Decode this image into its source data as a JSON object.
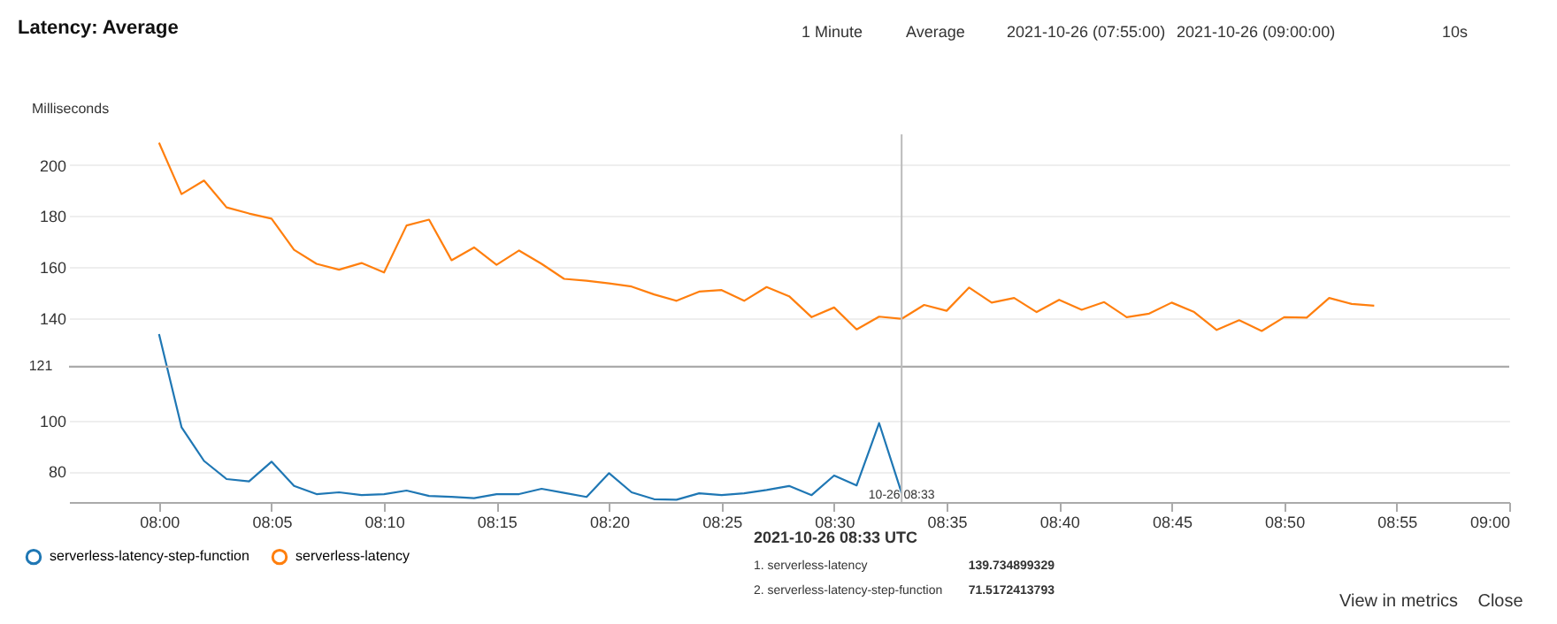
{
  "chart_data": {
    "type": "line",
    "title": "Latency: Average",
    "ylabel": "Milliseconds",
    "x": [
      "2021-10-26T08:00",
      "2021-10-26T08:01",
      "2021-10-26T08:02",
      "2021-10-26T08:03",
      "2021-10-26T08:04",
      "2021-10-26T08:05",
      "2021-10-26T08:06",
      "2021-10-26T08:07",
      "2021-10-26T08:08",
      "2021-10-26T08:09",
      "2021-10-26T08:10",
      "2021-10-26T08:11",
      "2021-10-26T08:12",
      "2021-10-26T08:13",
      "2021-10-26T08:14",
      "2021-10-26T08:15",
      "2021-10-26T08:16",
      "2021-10-26T08:17",
      "2021-10-26T08:18",
      "2021-10-26T08:19",
      "2021-10-26T08:20",
      "2021-10-26T08:21",
      "2021-10-26T08:22",
      "2021-10-26T08:23",
      "2021-10-26T08:24",
      "2021-10-26T08:25",
      "2021-10-26T08:26",
      "2021-10-26T08:27",
      "2021-10-26T08:28",
      "2021-10-26T08:29",
      "2021-10-26T08:30",
      "2021-10-26T08:31",
      "2021-10-26T08:32",
      "2021-10-26T08:33",
      "2021-10-26T08:34",
      "2021-10-26T08:35",
      "2021-10-26T08:36",
      "2021-10-26T08:37",
      "2021-10-26T08:38",
      "2021-10-26T08:39",
      "2021-10-26T08:40",
      "2021-10-26T08:41",
      "2021-10-26T08:42",
      "2021-10-26T08:43",
      "2021-10-26T08:44",
      "2021-10-26T08:45",
      "2021-10-26T08:46",
      "2021-10-26T08:47",
      "2021-10-26T08:48",
      "2021-10-26T08:49",
      "2021-10-26T08:50",
      "2021-10-26T08:51",
      "2021-10-26T08:52",
      "2021-10-26T08:53",
      "2021-10-26T08:54"
    ],
    "series": [
      {
        "name": "serverless-latency-step-function",
        "color": "#1f77b4",
        "x": [
          "2021-10-26T08:00",
          "2021-10-26T08:01",
          "2021-10-26T08:02",
          "2021-10-26T08:03",
          "2021-10-26T08:04",
          "2021-10-26T08:05",
          "2021-10-26T08:06",
          "2021-10-26T08:07",
          "2021-10-26T08:08",
          "2021-10-26T08:09",
          "2021-10-26T08:10",
          "2021-10-26T08:11",
          "2021-10-26T08:12",
          "2021-10-26T08:13",
          "2021-10-26T08:14",
          "2021-10-26T08:15",
          "2021-10-26T08:16",
          "2021-10-26T08:17",
          "2021-10-26T08:18",
          "2021-10-26T08:19",
          "2021-10-26T08:20",
          "2021-10-26T08:21",
          "2021-10-26T08:22",
          "2021-10-26T08:23",
          "2021-10-26T08:24",
          "2021-10-26T08:25",
          "2021-10-26T08:26",
          "2021-10-26T08:27",
          "2021-10-26T08:28",
          "2021-10-26T08:29",
          "2021-10-26T08:30",
          "2021-10-26T08:31",
          "2021-10-26T08:32",
          "2021-10-26T08:33"
        ],
        "values": [
          133.8,
          97.3,
          84.1,
          77.0,
          76.1,
          83.8,
          74.3,
          71.1,
          71.8,
          70.7,
          71.1,
          72.5,
          70.4,
          70.0,
          69.5,
          71.1,
          71.1,
          73.2,
          71.6,
          70.0,
          79.3,
          71.8,
          69.1,
          68.9,
          71.4,
          70.7,
          71.4,
          72.7,
          74.3,
          70.7,
          78.4,
          74.5,
          98.9,
          71.5172413793
        ]
      },
      {
        "name": "serverless-latency",
        "color": "#ff7f0e",
        "values": [
          208.7,
          188.6,
          193.9,
          183.4,
          181.0,
          179.0,
          166.8,
          161.3,
          159.0,
          161.6,
          157.9,
          176.3,
          178.6,
          162.7,
          167.7,
          160.9,
          166.5,
          161.3,
          155.4,
          154.7,
          153.6,
          152.4,
          149.3,
          146.8,
          150.4,
          151.0,
          146.8,
          152.2,
          148.6,
          140.4,
          144.2,
          135.6,
          140.6,
          139.734899329,
          145.2,
          142.9,
          152.0,
          146.1,
          147.9,
          142.4,
          147.2,
          143.3,
          146.3,
          140.4,
          141.8,
          146.1,
          142.4,
          135.4,
          139.2,
          135.0,
          140.4,
          140.2,
          147.9,
          145.6,
          144.9
        ]
      }
    ],
    "xlim": [
      "2021-10-26T07:56",
      "2021-10-26T09:00"
    ],
    "xticks": [
      {
        "value": "2021-10-26T08:00",
        "label": "08:00"
      },
      {
        "value": "2021-10-26T08:05",
        "label": "08:05"
      },
      {
        "value": "2021-10-26T08:10",
        "label": "08:10"
      },
      {
        "value": "2021-10-26T08:15",
        "label": "08:15"
      },
      {
        "value": "2021-10-26T08:20",
        "label": "08:20"
      },
      {
        "value": "2021-10-26T08:25",
        "label": "08:25"
      },
      {
        "value": "2021-10-26T08:30",
        "label": "08:30"
      },
      {
        "value": "2021-10-26T08:35",
        "label": "08:35"
      },
      {
        "value": "2021-10-26T08:40",
        "label": "08:40"
      },
      {
        "value": "2021-10-26T08:45",
        "label": "08:45"
      },
      {
        "value": "2021-10-26T08:50",
        "label": "08:50"
      },
      {
        "value": "2021-10-26T08:55",
        "label": "08:55"
      },
      {
        "value": "2021-10-26T09:00",
        "label": "09:00"
      }
    ],
    "ylim": [
      68,
      212
    ],
    "yticks": [
      80,
      100,
      140,
      160,
      180,
      200
    ],
    "ref_lines": [
      {
        "axis": "y",
        "value": 121,
        "label": "121",
        "color": "#aaaaaa"
      },
      {
        "axis": "x",
        "value": "2021-10-26T08:33",
        "label": "10-26 08:33",
        "color": "#bbbbbb"
      }
    ],
    "annotations": [
      "1 Minute",
      "Average",
      "2021-10-26 (07:55:00)",
      "2021-10-26 (09:00:00)",
      "10s",
      "2021-10-26 08:33 UTC",
      "1. serverless-latency",
      "139.734899329",
      "2. serverless-latency-step-function",
      "71.5172413793",
      "View in metrics",
      "Close"
    ],
    "grid": "y",
    "legend": "bottom left",
    "marker": "none",
    "line_style": "solid"
  }
}
